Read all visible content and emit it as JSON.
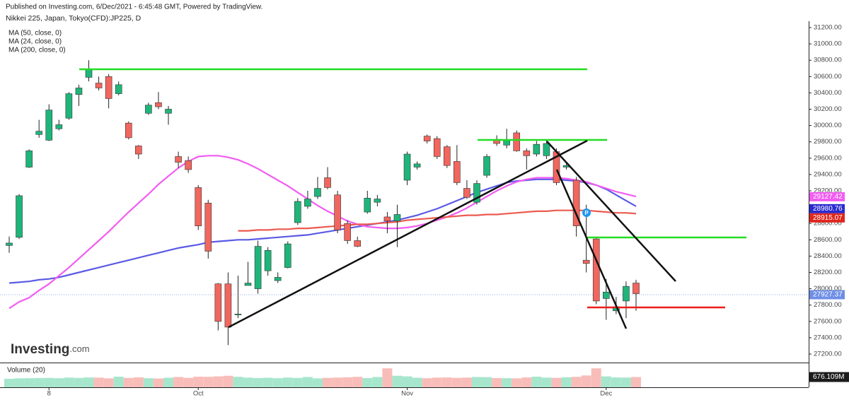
{
  "chart_data": {
    "type": "candlestick",
    "subtitle": "Published on Investing.com, 6/Dec/2021 - 6:45:48 GMT, Powered by TradingView.",
    "title": "Nikkei 225, Japan, Tokyo(CFD):JP225, D",
    "categories": [
      null,
      null,
      null,
      null,
      "8",
      null,
      null,
      null,
      null,
      null,
      null,
      null,
      null,
      null,
      null,
      null,
      null,
      null,
      null,
      "Oct",
      null,
      null,
      null,
      null,
      null,
      null,
      null,
      null,
      null,
      null,
      null,
      null,
      null,
      null,
      null,
      null,
      null,
      null,
      null,
      null,
      "Nov",
      null,
      null,
      null,
      null,
      null,
      null,
      null,
      null,
      null,
      null,
      null,
      null,
      null,
      null,
      null,
      null,
      null,
      null,
      null,
      "Dec",
      null,
      null,
      null
    ],
    "open": [
      28530,
      28630,
      29490,
      29890,
      29820,
      29960,
      30090,
      30380,
      30590,
      30520,
      30600,
      30390,
      30030,
      29750,
      30150,
      30280,
      30150,
      29620,
      29570,
      29240,
      29050,
      28060,
      28060,
      27680,
      28040,
      28000,
      28220,
      28100,
      28260,
      28810,
      29010,
      29130,
      29360,
      29150,
      28800,
      28590,
      28940,
      29060,
      28880,
      28830,
      29330,
      29490,
      29870,
      29840,
      29740,
      29560,
      29230,
      29060,
      29390,
      29830,
      29760,
      29910,
      29690,
      29650,
      29630,
      29680,
      29490,
      29330,
      28350,
      28610,
      27880,
      27730,
      27850,
      28070
    ],
    "high": [
      28640,
      29160,
      29710,
      30070,
      30260,
      30070,
      30410,
      30500,
      30800,
      30600,
      30630,
      30540,
      30050,
      29760,
      30280,
      30410,
      30240,
      29680,
      29620,
      29270,
      29090,
      28070,
      28200,
      28160,
      28330,
      28590,
      28510,
      28200,
      28580,
      29110,
      29200,
      29370,
      29490,
      29200,
      28840,
      28640,
      29200,
      29150,
      28940,
      29030,
      29680,
      29560,
      29890,
      29870,
      29760,
      29760,
      29330,
      29330,
      29650,
      29880,
      29960,
      29940,
      29720,
      29810,
      29820,
      29720,
      29550,
      29370,
      29030,
      28640,
      28120,
      27900,
      28090,
      28110
    ],
    "low": [
      28440,
      28610,
      29480,
      29850,
      29810,
      29940,
      30070,
      30240,
      30540,
      30430,
      30210,
      30370,
      29830,
      29590,
      30130,
      30200,
      30010,
      29480,
      29420,
      28720,
      28370,
      27490,
      27310,
      27640,
      28040,
      27940,
      28160,
      28070,
      28250,
      28780,
      28980,
      29100,
      29220,
      28680,
      28550,
      28510,
      28920,
      29010,
      28680,
      28510,
      29270,
      29460,
      29780,
      29590,
      29480,
      29270,
      29100,
      29030,
      29360,
      29750,
      29720,
      29680,
      29460,
      29620,
      29590,
      29270,
      29460,
      28640,
      28200,
      27810,
      27620,
      27690,
      27640,
      27730
    ],
    "close": [
      28560,
      29140,
      29690,
      29930,
      30190,
      30010,
      30390,
      30460,
      30690,
      30460,
      30330,
      30500,
      29850,
      29650,
      30250,
      30230,
      30200,
      29550,
      29460,
      28770,
      28460,
      27600,
      27530,
      27690,
      28070,
      28520,
      28470,
      28140,
      28550,
      29070,
      29100,
      29230,
      29240,
      28720,
      28590,
      28520,
      29110,
      29100,
      28830,
      28910,
      29650,
      29530,
      29810,
      29620,
      29510,
      29300,
      29120,
      29290,
      29620,
      29780,
      29820,
      29690,
      29630,
      29770,
      29780,
      29300,
      29510,
      28770,
      28310,
      27850,
      27960,
      27780,
      28030,
      27940
    ],
    "up_color": "#1fb57a",
    "down_color": "#f1665e",
    "ylim": [
      27200,
      31200
    ],
    "yticks": [
      {
        "value": 27200,
        "label": "27200.00"
      },
      {
        "value": 27400,
        "label": "27400.00"
      },
      {
        "value": 27600,
        "label": "27600.00"
      },
      {
        "value": 27800,
        "label": "27800.00"
      },
      {
        "value": 28000,
        "label": "28000.00"
      },
      {
        "value": 28200,
        "label": "28200.00"
      },
      {
        "value": 28400,
        "label": "28400.00"
      },
      {
        "value": 28600,
        "label": "28600.00"
      },
      {
        "value": 28800,
        "label": "28800.00"
      },
      {
        "value": 29000,
        "label": "29000.00"
      },
      {
        "value": 29200,
        "label": "29200.00"
      },
      {
        "value": 29400,
        "label": "29400.00"
      },
      {
        "value": 29600,
        "label": "29600.00"
      },
      {
        "value": 29800,
        "label": "29800.00"
      },
      {
        "value": 30000,
        "label": "30000.00"
      },
      {
        "value": 30200,
        "label": "30200.00"
      },
      {
        "value": 30400,
        "label": "30400.00"
      },
      {
        "value": 30600,
        "label": "30600.00"
      },
      {
        "value": 30800,
        "label": "30800.00"
      },
      {
        "value": 31000,
        "label": "31000.00"
      },
      {
        "value": 31200,
        "label": "31200.00"
      }
    ],
    "grid": false,
    "moving_averages": [
      {
        "name": "MA (50, close, 0)",
        "color": "#5a5ae6",
        "values": [
          28070,
          28080,
          28090,
          28110,
          28120,
          28140,
          28170,
          28200,
          28230,
          28260,
          28290,
          28320,
          28350,
          28380,
          28410,
          28440,
          28470,
          28500,
          28520,
          28540,
          28570,
          28580,
          28590,
          28600,
          28600,
          28610,
          28620,
          28630,
          28640,
          28650,
          28660,
          28680,
          28700,
          28720,
          28740,
          28760,
          28780,
          28800,
          28820,
          28840,
          28870,
          28900,
          28940,
          28980,
          29030,
          29080,
          29130,
          29180,
          29220,
          29260,
          29300,
          29320,
          29330,
          29340,
          29340,
          29340,
          29330,
          29320,
          29300,
          29270,
          29220,
          29150,
          29080,
          29010
        ]
      },
      {
        "name": "MA (24, close, 0)",
        "color": "#f25cf2",
        "values": [
          27760,
          27840,
          27890,
          27980,
          28060,
          28160,
          28260,
          28370,
          28480,
          28590,
          28700,
          28820,
          28940,
          29050,
          29160,
          29280,
          29380,
          29480,
          29560,
          29620,
          29630,
          29630,
          29610,
          29580,
          29530,
          29470,
          29400,
          29330,
          29260,
          29180,
          29100,
          29020,
          28950,
          28890,
          28830,
          28790,
          28760,
          28750,
          28740,
          28740,
          28750,
          28770,
          28800,
          28840,
          28880,
          28930,
          28990,
          29060,
          29130,
          29200,
          29260,
          29310,
          29340,
          29360,
          29360,
          29360,
          29350,
          29330,
          29310,
          29270,
          29230,
          29190,
          29160,
          29130
        ]
      },
      {
        "name": "MA (200, close, 0)",
        "color": "#ec5a50",
        "values": [
          null,
          null,
          null,
          null,
          null,
          null,
          null,
          null,
          null,
          null,
          null,
          null,
          null,
          null,
          null,
          null,
          null,
          null,
          null,
          null,
          null,
          null,
          null,
          28710,
          28710,
          28720,
          28720,
          28730,
          28730,
          28740,
          28740,
          28750,
          28760,
          28770,
          28780,
          28790,
          28790,
          28800,
          28810,
          28820,
          28840,
          28850,
          28860,
          28870,
          28880,
          28890,
          28900,
          28900,
          28910,
          28910,
          28920,
          28930,
          28940,
          28950,
          28950,
          28960,
          28960,
          28960,
          28960,
          28950,
          28940,
          28930,
          28930,
          28920
        ]
      }
    ],
    "price_labels": [
      {
        "value": 29127.42,
        "label": "29127.42",
        "color": "#f25cf2"
      },
      {
        "value": 28980.76,
        "label": "28980.76",
        "color": "#2a2ad0"
      },
      {
        "value": 28915.07,
        "label": "28915.07",
        "color": "#e0261c"
      },
      {
        "value": 27927.37,
        "label": "27927.37",
        "color": "#6e8ee6"
      }
    ],
    "volume": {
      "title": "Volume (20)",
      "ylim": [
        0,
        1400
      ],
      "values": [
        560,
        590,
        600,
        610,
        620,
        600,
        640,
        620,
        650,
        640,
        590,
        700,
        620,
        660,
        600,
        580,
        630,
        680,
        620,
        700,
        690,
        720,
        760,
        690,
        640,
        610,
        630,
        600,
        640,
        620,
        680,
        590,
        620,
        640,
        660,
        690,
        610,
        680,
        1250,
        760,
        720,
        630,
        600,
        640,
        650,
        620,
        640,
        680,
        670,
        610,
        600,
        590,
        650,
        700,
        640,
        620,
        660,
        690,
        780,
        1250,
        720,
        650,
        640,
        676.109
      ],
      "up_color": "#a6e6cc",
      "down_color": "#f8bdb9",
      "last": {
        "value": 676.109,
        "label": "676.109M"
      }
    }
  },
  "logo": {
    "name": "Investing",
    "suffix": ".com"
  }
}
